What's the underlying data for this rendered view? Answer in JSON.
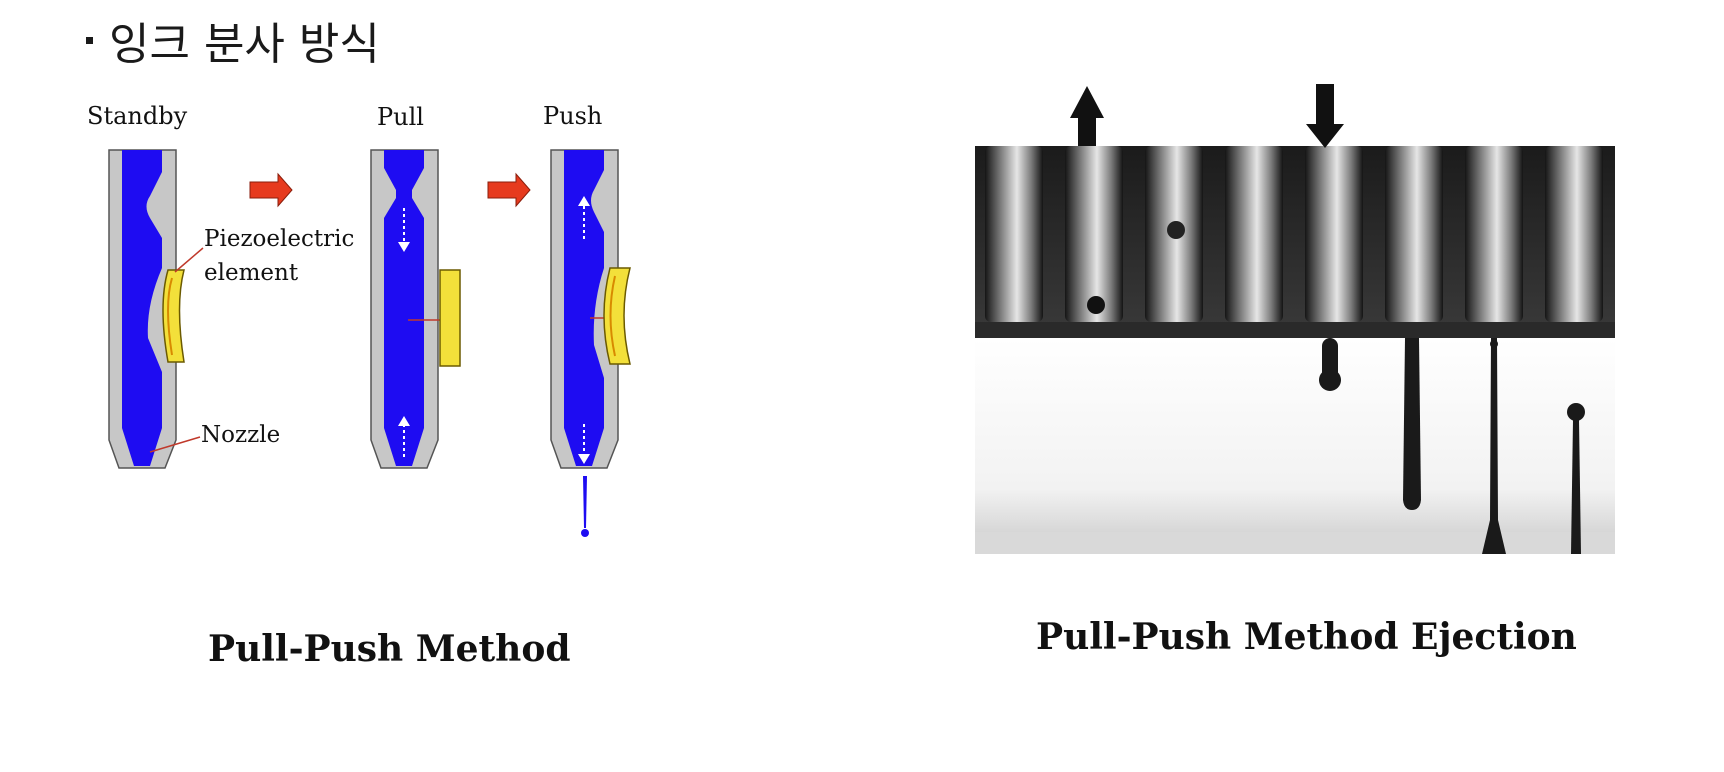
{
  "heading": {
    "text": "잉크 분사 방식"
  },
  "diagram": {
    "stages": [
      "Standby",
      "Pull",
      "Push"
    ],
    "callouts": {
      "piezo_line1": "Piezoelectric",
      "piezo_line2": "element",
      "nozzle": "Nozzle"
    },
    "caption": "Pull-Push Method",
    "colors": {
      "ink": "#1e0cf2",
      "wall": "#c7c7c7",
      "piezo": "#f3e03a",
      "arrow": "#e63a1e"
    }
  },
  "photo": {
    "caption": "Pull-Push Method Ejection",
    "arrows": [
      "up-arrow-icon",
      "down-arrow-icon"
    ]
  }
}
